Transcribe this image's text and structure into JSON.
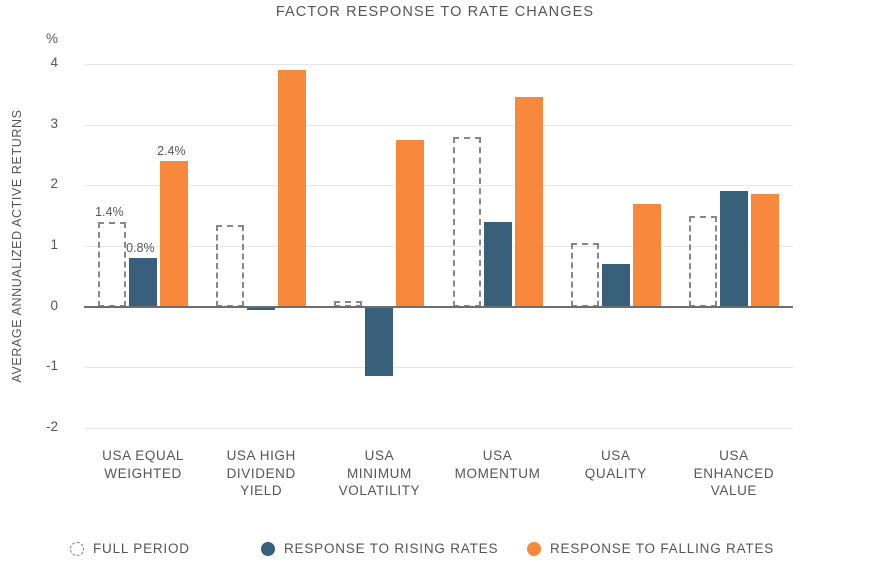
{
  "title": "FACTOR RESPONSE TO RATE CHANGES",
  "y_axis": {
    "title": "AVERAGE ANNUALIZED ACTIVE RETURNS",
    "unit_label": "%"
  },
  "legend": {
    "full_period": "FULL PERIOD",
    "rising": "RESPONSE TO RISING RATES",
    "falling": "RESPONSE TO FALLING RATES"
  },
  "colors": {
    "rising_bar": "#39607A",
    "falling_bar": "#F8893C",
    "dashed_outline": "#85878B",
    "text": "#54565A",
    "gridline": "#E6E7E8",
    "zero_axis": "#6D6E71"
  },
  "chart_data": {
    "type": "bar",
    "title": "FACTOR RESPONSE TO RATE CHANGES",
    "ylabel": "AVERAGE ANNUALIZED ACTIVE RETURNS",
    "y_unit": "%",
    "ylim": [
      -2,
      4
    ],
    "yticks": [
      4,
      3,
      2,
      1,
      0,
      -1,
      -2
    ],
    "grid": true,
    "legend_position": "bottom",
    "categories": [
      "USA EQUAL WEIGHTED",
      "USA HIGH DIVIDEND YIELD",
      "USA MINIMUM VOLATILITY",
      "USA MOMENTUM",
      "USA QUALITY",
      "USA ENHANCED VALUE"
    ],
    "category_lines": [
      [
        "USA EQUAL",
        "WEIGHTED"
      ],
      [
        "USA HIGH",
        "DIVIDEND",
        "YIELD"
      ],
      [
        "USA",
        "MINIMUM",
        "VOLATILITY"
      ],
      [
        "USA",
        "MOMENTUM"
      ],
      [
        "USA",
        "QUALITY"
      ],
      [
        "USA",
        "ENHANCED",
        "VALUE"
      ]
    ],
    "series": [
      {
        "name": "FULL PERIOD",
        "style": "dashed-outline",
        "color": "#85878B",
        "values": [
          1.4,
          1.35,
          0.1,
          2.8,
          1.05,
          1.5
        ]
      },
      {
        "name": "RESPONSE TO RISING RATES",
        "style": "solid",
        "color": "#39607A",
        "values": [
          0.8,
          -0.05,
          -1.15,
          1.4,
          0.7,
          1.9
        ]
      },
      {
        "name": "RESPONSE TO FALLING RATES",
        "style": "solid",
        "color": "#F8893C",
        "values": [
          2.4,
          3.9,
          2.75,
          3.45,
          1.7,
          1.85
        ]
      }
    ],
    "annotations": [
      {
        "category_index": 0,
        "series_index": 0,
        "text": "1.4%"
      },
      {
        "category_index": 0,
        "series_index": 1,
        "text": "0.8%"
      },
      {
        "category_index": 0,
        "series_index": 2,
        "text": "2.4%"
      }
    ]
  }
}
